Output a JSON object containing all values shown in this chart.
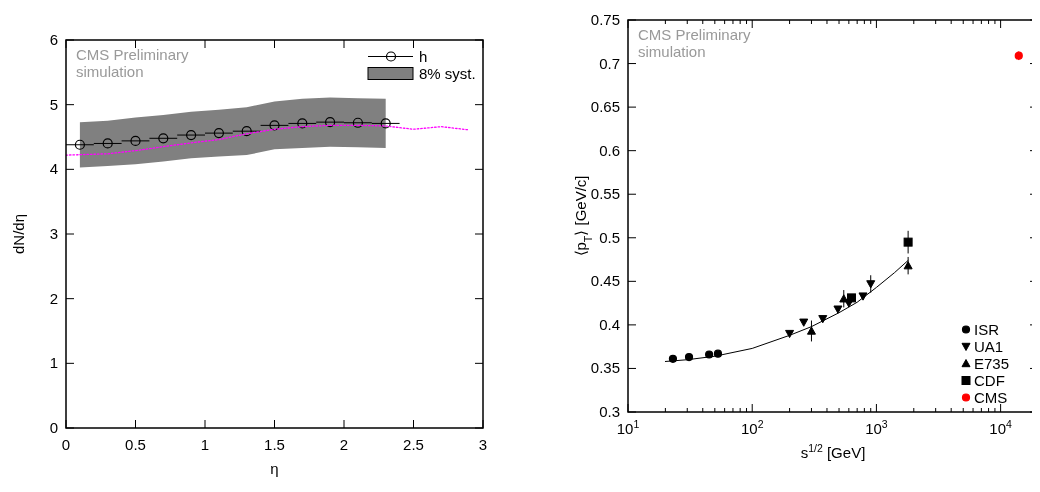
{
  "chart_data": [
    {
      "type": "line",
      "xlabel": "η",
      "ylabel": "dN/dη",
      "xlim": [
        0,
        3
      ],
      "ylim": [
        0,
        6
      ],
      "xticks": [
        0,
        0.5,
        1,
        1.5,
        2,
        2.5,
        3
      ],
      "yticks": [
        0,
        1,
        2,
        3,
        4,
        5,
        6
      ],
      "legend": "top right",
      "annotations": [
        "CMS Preliminary\nsimulation",
        "8% syst."
      ],
      "series": [
        {
          "name": "h",
          "type": "scatter",
          "color": "#000000",
          "marker": "circle",
          "x": [
            0.1,
            0.3,
            0.5,
            0.7,
            0.9,
            1.1,
            1.3,
            1.5,
            1.7,
            1.9,
            2.1,
            2.3
          ],
          "values": [
            4.38,
            4.4,
            4.44,
            4.48,
            4.53,
            4.56,
            4.59,
            4.68,
            4.71,
            4.73,
            4.72,
            4.71
          ],
          "xerrors": [
            0.1,
            0.1,
            0.1,
            0.1,
            0.1,
            0.1,
            0.1,
            0.1,
            0.1,
            0.1,
            0.1,
            0.1
          ],
          "lower": [
            4.03,
            4.05,
            4.08,
            4.12,
            4.17,
            4.2,
            4.22,
            4.31,
            4.33,
            4.35,
            4.34,
            4.33
          ],
          "upper": [
            4.73,
            4.75,
            4.8,
            4.84,
            4.89,
            4.92,
            4.96,
            5.05,
            5.09,
            5.11,
            5.1,
            5.09
          ]
        },
        {
          "color": "#ff00ff",
          "line_style": "dotted",
          "marker": "none",
          "x": [
            0,
            0.3,
            0.5,
            0.7,
            0.9,
            1.1,
            1.3,
            1.5,
            1.7,
            1.9,
            2.1,
            2.3,
            2.5,
            2.7,
            2.9
          ],
          "values": [
            4.22,
            4.24,
            4.29,
            4.35,
            4.41,
            4.46,
            4.55,
            4.62,
            4.66,
            4.68,
            4.68,
            4.67,
            4.62,
            4.66,
            4.61
          ]
        }
      ]
    },
    {
      "type": "scatter",
      "log": "x",
      "xlabel": "s$^{1/2}$ [GeV]",
      "ylabel": "⟨p$_{T}$⟩ [GeV/c]",
      "xlim": [
        10,
        20000
      ],
      "ylim": [
        0.3,
        0.75
      ],
      "yticks": [
        0.3,
        0.35,
        0.4,
        0.45,
        0.5,
        0.55,
        0.6,
        0.65,
        0.7,
        0.75
      ],
      "legend": "bottom right",
      "annotations": [
        "CMS Preliminary\nsimulation"
      ],
      "xticks": [
        {
          "value": 10,
          "label": "10$^{1}$"
        },
        {
          "value": 20,
          "label": null
        },
        {
          "value": 30,
          "label": null
        },
        {
          "value": 40,
          "label": null
        },
        {
          "value": 50,
          "label": null
        },
        {
          "value": 60,
          "label": null
        },
        {
          "value": 70,
          "label": null
        },
        {
          "value": 80,
          "label": null
        },
        {
          "value": 90,
          "label": null
        },
        {
          "value": 100,
          "label": "10$^{2}$"
        },
        {
          "value": 200,
          "label": null
        },
        {
          "value": 300,
          "label": null
        },
        {
          "value": 400,
          "label": null
        },
        {
          "value": 500,
          "label": null
        },
        {
          "value": 600,
          "label": null
        },
        {
          "value": 700,
          "label": null
        },
        {
          "value": 800,
          "label": null
        },
        {
          "value": 900,
          "label": null
        },
        {
          "value": 1000,
          "label": "10$^{3}$"
        },
        {
          "value": 2000,
          "label": null
        },
        {
          "value": 3000,
          "label": null
        },
        {
          "value": 4000,
          "label": null
        },
        {
          "value": 5000,
          "label": null
        },
        {
          "value": 6000,
          "label": null
        },
        {
          "value": 7000,
          "label": null
        },
        {
          "value": 8000,
          "label": null
        },
        {
          "value": 9000,
          "label": null
        },
        {
          "value": 10000,
          "label": "10$^{4}$"
        }
      ],
      "series": [
        {
          "type": "line",
          "color": "#000000",
          "marker": "none",
          "line_style": "solid",
          "x": [
            20,
            30,
            50,
            100,
            200,
            300,
            500,
            700,
            1000,
            1400,
            1800
          ],
          "values": [
            0.358,
            0.36,
            0.364,
            0.373,
            0.388,
            0.398,
            0.414,
            0.426,
            0.443,
            0.46,
            0.474
          ]
        },
        {
          "name": "ISR",
          "color": "#000000",
          "marker": "circle",
          "x": [
            23,
            31,
            45,
            53
          ],
          "values": [
            0.361,
            0.363,
            0.366,
            0.367
          ]
        },
        {
          "name": "UA1",
          "color": "#000000",
          "marker": "triangle-down",
          "x": [
            200,
            260,
            370,
            490,
            600,
            780,
            900
          ],
          "values": [
            0.39,
            0.403,
            0.407,
            0.418,
            0.425,
            0.433,
            0.447
          ],
          "errors": [
            null,
            null,
            null,
            null,
            null,
            null,
            0.01
          ]
        },
        {
          "name": "E735",
          "color": "#000000",
          "marker": "triangle",
          "x": [
            300,
            546,
            1800
          ],
          "values": [
            0.393,
            0.43,
            0.468
          ],
          "errors": [
            0.012,
            0.01,
            0.01
          ]
        },
        {
          "name": "CDF",
          "color": "#000000",
          "marker": "square",
          "x": [
            630,
            1800
          ],
          "values": [
            0.431,
            0.495
          ],
          "errors": [
            null,
            0.013
          ]
        },
        {
          "name": "CMS",
          "color": "#ff0000",
          "marker": "circle",
          "x": [
            14000
          ],
          "values": [
            0.709
          ],
          "errors": [
            0.005
          ]
        }
      ]
    }
  ]
}
